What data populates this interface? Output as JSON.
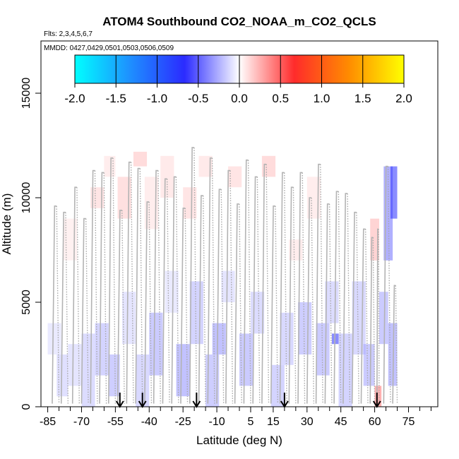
{
  "chart_data": {
    "type": "heatmap",
    "title": "ATOM4 Southbound CO2_NOAA_m_CO2_QCLS",
    "subtitle_flights": "Flts: 2,3,4,5,6,7",
    "subtitle_dates": "MMDD: 0427,0429,0501,0503,0506,0509",
    "xlabel": "Latitude (deg N)",
    "ylabel": "Altitude (m)",
    "xlim": [
      -88,
      88
    ],
    "ylim": [
      0,
      17500
    ],
    "x_ticks": [
      -85,
      -70,
      -55,
      -40,
      -25,
      -10,
      5,
      15,
      30,
      45,
      60,
      75
    ],
    "x_tick_labels": [
      "-85",
      "-70",
      "-55",
      "-40",
      "-25",
      "-10",
      "5",
      "15",
      "30",
      "45",
      "60",
      "75"
    ],
    "x_minor_ticks": [
      -80,
      -75,
      -65,
      -60,
      -50,
      -45,
      -35,
      -30,
      -20,
      -15,
      -5,
      0,
      10,
      20,
      25,
      35,
      40,
      50,
      55,
      65,
      70,
      80,
      85
    ],
    "y_ticks": [
      0,
      5000,
      10000,
      15000
    ],
    "y_tick_labels": [
      "0",
      "5000",
      "10000",
      "15000"
    ],
    "colorbar": {
      "min": -2.0,
      "max": 2.0,
      "ticks": [
        -2.0,
        -1.5,
        -1.0,
        -0.5,
        0.0,
        0.5,
        1.0,
        1.5,
        2.0
      ],
      "tick_labels": [
        "-2.0",
        "-1.5",
        "-1.0",
        "-0.5",
        "0.0",
        "0.5",
        "1.0",
        "1.5",
        "2.0"
      ],
      "colors": [
        "#00ffff",
        "#1e90ff",
        "#2b2bff",
        "#ffffff",
        "#ff2b2b",
        "#ff8c00",
        "#ffff00"
      ]
    },
    "profile_arrows_lat": [
      -53,
      -43,
      -19,
      20,
      61
    ],
    "cells": [
      {
        "lat": [
          -85,
          -79
        ],
        "alt": [
          2500,
          4000
        ],
        "v": -0.12
      },
      {
        "lat": [
          -81,
          -76
        ],
        "alt": [
          500,
          2500
        ],
        "v": -0.18
      },
      {
        "lat": [
          -78,
          -72
        ],
        "alt": [
          7000,
          9000
        ],
        "v": 0.08
      },
      {
        "lat": [
          -76,
          -70
        ],
        "alt": [
          1000,
          3000
        ],
        "v": -0.15
      },
      {
        "lat": [
          -70,
          -64
        ],
        "alt": [
          0,
          3500
        ],
        "v": -0.2
      },
      {
        "lat": [
          -66,
          -60
        ],
        "alt": [
          9500,
          10500
        ],
        "v": 0.15
      },
      {
        "lat": [
          -64,
          -58
        ],
        "alt": [
          1500,
          4000
        ],
        "v": -0.25
      },
      {
        "lat": [
          -60,
          -55
        ],
        "alt": [
          11000,
          12000
        ],
        "v": 0.1
      },
      {
        "lat": [
          -58,
          -53
        ],
        "alt": [
          500,
          2500
        ],
        "v": -0.28
      },
      {
        "lat": [
          -54,
          -48
        ],
        "alt": [
          9000,
          11000
        ],
        "v": 0.18
      },
      {
        "lat": [
          -52,
          -46
        ],
        "alt": [
          3000,
          5500
        ],
        "v": -0.15
      },
      {
        "lat": [
          -47,
          -41
        ],
        "alt": [
          11500,
          12200
        ],
        "v": 0.2
      },
      {
        "lat": [
          -46,
          -40
        ],
        "alt": [
          0,
          2500
        ],
        "v": -0.22
      },
      {
        "lat": [
          -42,
          -36
        ],
        "alt": [
          8500,
          11000
        ],
        "v": 0.1
      },
      {
        "lat": [
          -40,
          -34
        ],
        "alt": [
          1500,
          4500
        ],
        "v": -0.3
      },
      {
        "lat": [
          -35,
          -29
        ],
        "alt": [
          10000,
          12000
        ],
        "v": 0.12
      },
      {
        "lat": [
          -33,
          -27
        ],
        "alt": [
          4500,
          6500
        ],
        "v": -0.12
      },
      {
        "lat": [
          -28,
          -22
        ],
        "alt": [
          500,
          3000
        ],
        "v": -0.35
      },
      {
        "lat": [
          -25,
          -19
        ],
        "alt": [
          9000,
          10500
        ],
        "v": 0.15
      },
      {
        "lat": [
          -22,
          -16
        ],
        "alt": [
          3000,
          6000
        ],
        "v": -0.25
      },
      {
        "lat": [
          -18,
          -12
        ],
        "alt": [
          11000,
          12000
        ],
        "v": 0.12
      },
      {
        "lat": [
          -15,
          -9
        ],
        "alt": [
          0,
          2500
        ],
        "v": -0.28
      },
      {
        "lat": [
          -12,
          -6
        ],
        "alt": [
          2500,
          4000
        ],
        "v": -0.35
      },
      {
        "lat": [
          -8,
          -2
        ],
        "alt": [
          5000,
          6500
        ],
        "v": -0.15
      },
      {
        "lat": [
          -5,
          1
        ],
        "alt": [
          10500,
          11500
        ],
        "v": 0.15
      },
      {
        "lat": [
          0,
          6
        ],
        "alt": [
          1000,
          3500
        ],
        "v": -0.3
      },
      {
        "lat": [
          5,
          11
        ],
        "alt": [
          3500,
          5500
        ],
        "v": -0.2
      },
      {
        "lat": [
          10,
          16
        ],
        "alt": [
          11000,
          12000
        ],
        "v": 0.2
      },
      {
        "lat": [
          14,
          20
        ],
        "alt": [
          0,
          2000
        ],
        "v": -0.25
      },
      {
        "lat": [
          18,
          24
        ],
        "alt": [
          2000,
          4500
        ],
        "v": -0.22
      },
      {
        "lat": [
          22,
          28
        ],
        "alt": [
          7000,
          8000
        ],
        "v": 0.1
      },
      {
        "lat": [
          26,
          32
        ],
        "alt": [
          2500,
          5000
        ],
        "v": -0.28
      },
      {
        "lat": [
          30,
          36
        ],
        "alt": [
          9000,
          11000
        ],
        "v": 0.1
      },
      {
        "lat": [
          34,
          40
        ],
        "alt": [
          1500,
          4000
        ],
        "v": -0.3
      },
      {
        "lat": [
          38,
          44
        ],
        "alt": [
          4000,
          6000
        ],
        "v": -0.2
      },
      {
        "lat": [
          41,
          44
        ],
        "alt": [
          3000,
          3500
        ],
        "v": -0.7
      },
      {
        "lat": [
          44,
          50
        ],
        "alt": [
          0,
          3500
        ],
        "v": -0.25
      },
      {
        "lat": [
          50,
          56
        ],
        "alt": [
          2500,
          6000
        ],
        "v": -0.22
      },
      {
        "lat": [
          55,
          60
        ],
        "alt": [
          1000,
          3000
        ],
        "v": -0.3
      },
      {
        "lat": [
          58,
          62
        ],
        "alt": [
          7000,
          9000
        ],
        "v": 0.25
      },
      {
        "lat": [
          60,
          63
        ],
        "alt": [
          0,
          1000
        ],
        "v": 0.45
      },
      {
        "lat": [
          62,
          66
        ],
        "alt": [
          3000,
          5500
        ],
        "v": -0.3
      },
      {
        "lat": [
          64,
          68
        ],
        "alt": [
          7000,
          11500
        ],
        "v": -0.45
      },
      {
        "lat": [
          67,
          70
        ],
        "alt": [
          9000,
          11500
        ],
        "v": -0.7
      },
      {
        "lat": [
          66,
          70
        ],
        "alt": [
          1000,
          4000
        ],
        "v": -0.35
      }
    ],
    "profiles": [
      {
        "lat0": -83,
        "lat1": -80,
        "top": 9600
      },
      {
        "lat0": -79,
        "lat1": -76,
        "top": 9300
      },
      {
        "lat0": -74,
        "lat1": -71,
        "top": 10500
      },
      {
        "lat0": -70,
        "lat1": -67,
        "top": 9000
      },
      {
        "lat0": -66,
        "lat1": -63,
        "top": 11300
      },
      {
        "lat0": -62,
        "lat1": -59,
        "top": 11200
      },
      {
        "lat0": -58,
        "lat1": -55,
        "top": 11900
      },
      {
        "lat0": -54,
        "lat1": -51,
        "top": 9400
      },
      {
        "lat0": -50,
        "lat1": -47,
        "top": 11700
      },
      {
        "lat0": -46,
        "lat1": -43,
        "top": 11400
      },
      {
        "lat0": -42,
        "lat1": -39,
        "top": 9800
      },
      {
        "lat0": -38,
        "lat1": -35,
        "top": 11300
      },
      {
        "lat0": -34,
        "lat1": -31,
        "top": 10900
      },
      {
        "lat0": -30,
        "lat1": -27,
        "top": 11000
      },
      {
        "lat0": -26,
        "lat1": -23,
        "top": 9500
      },
      {
        "lat0": -22,
        "lat1": -19,
        "top": 12400
      },
      {
        "lat0": -18,
        "lat1": -15,
        "top": 10100
      },
      {
        "lat0": -14,
        "lat1": -11,
        "top": 11900
      },
      {
        "lat0": -10,
        "lat1": -7,
        "top": 10400
      },
      {
        "lat0": -6,
        "lat1": -3,
        "top": 11300
      },
      {
        "lat0": -2,
        "lat1": 1,
        "top": 9700
      },
      {
        "lat0": 2,
        "lat1": 5,
        "top": 11800
      },
      {
        "lat0": 6,
        "lat1": 9,
        "top": 11000
      },
      {
        "lat0": 10,
        "lat1": 13,
        "top": 11600
      },
      {
        "lat0": 14,
        "lat1": 17,
        "top": 9600
      },
      {
        "lat0": 18,
        "lat1": 21,
        "top": 11200
      },
      {
        "lat0": 22,
        "lat1": 25,
        "top": 10500
      },
      {
        "lat0": 26,
        "lat1": 29,
        "top": 11200
      },
      {
        "lat0": 30,
        "lat1": 33,
        "top": 10000
      },
      {
        "lat0": 34,
        "lat1": 37,
        "top": 11600
      },
      {
        "lat0": 38,
        "lat1": 41,
        "top": 9700
      },
      {
        "lat0": 42,
        "lat1": 45,
        "top": 10300
      },
      {
        "lat0": 46,
        "lat1": 49,
        "top": 10200
      },
      {
        "lat0": 50,
        "lat1": 53,
        "top": 9300
      },
      {
        "lat0": 54,
        "lat1": 57,
        "top": 8500
      },
      {
        "lat0": 58,
        "lat1": 60,
        "top": 8100
      },
      {
        "lat0": 61,
        "lat1": 62,
        "top": 8500
      },
      {
        "lat0": 64,
        "lat1": 67,
        "top": 11500
      },
      {
        "lat0": 68,
        "lat1": 70,
        "top": 5800
      }
    ]
  }
}
